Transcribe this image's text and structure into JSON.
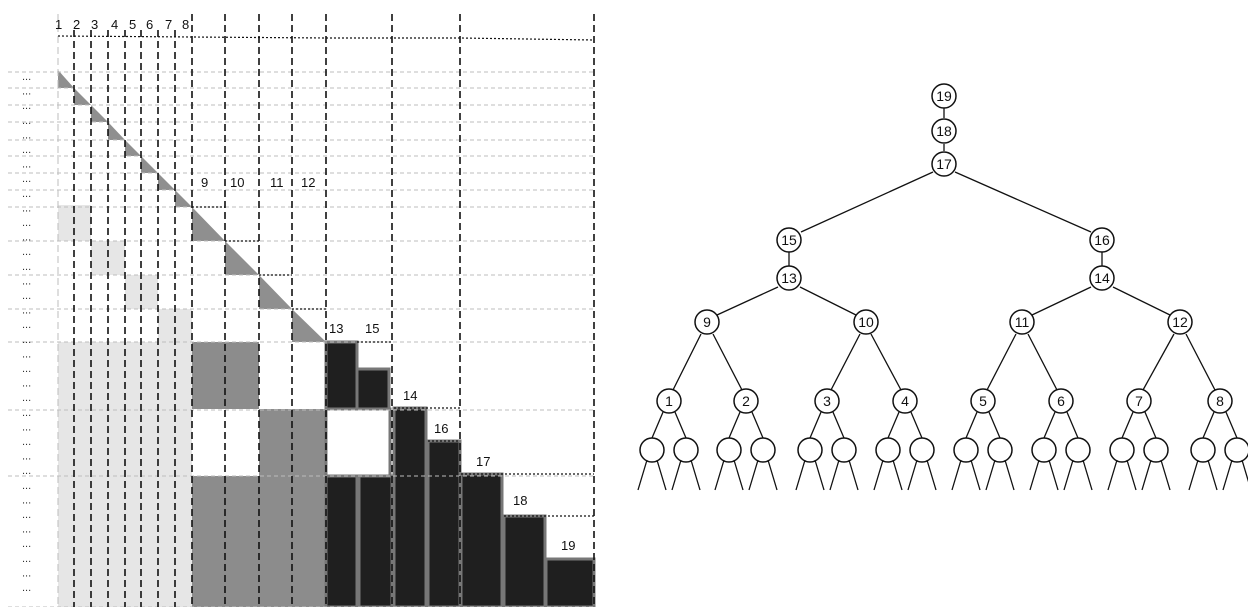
{
  "matrix": {
    "top_labels": [
      "1",
      "2",
      "3",
      "4",
      "5",
      "6",
      "7",
      "8"
    ],
    "mid_labels": [
      "9",
      "10",
      "11",
      "12"
    ],
    "block_labels": [
      "13",
      "15",
      "14",
      "16",
      "17",
      "18",
      "19"
    ],
    "row_markers": [
      "...",
      "...",
      "...",
      "...",
      "...",
      "...",
      "...",
      "...",
      "...",
      "...",
      "...",
      "...",
      "...",
      "...",
      "...",
      "...",
      "...",
      "...",
      "...",
      "...",
      "...",
      "...",
      "...",
      "...",
      "...",
      "...",
      "...",
      "...",
      "...",
      "...",
      "...",
      "...",
      "...",
      "...",
      "...",
      "..."
    ],
    "colors": {
      "light_gray": "#e6e6e6",
      "mid_gray": "#8c8c8c",
      "dark": "#1f1f1f",
      "triangle_gray": "#8f8f8f",
      "block_border": "#777777"
    }
  },
  "tree": {
    "chain": [
      "19",
      "18",
      "17"
    ],
    "level2": [
      "15",
      "16"
    ],
    "level3": [
      "13",
      "14"
    ],
    "level4": [
      "9",
      "10",
      "11",
      "12"
    ],
    "level5": [
      "1",
      "2",
      "3",
      "4",
      "5",
      "6",
      "7",
      "8"
    ]
  }
}
